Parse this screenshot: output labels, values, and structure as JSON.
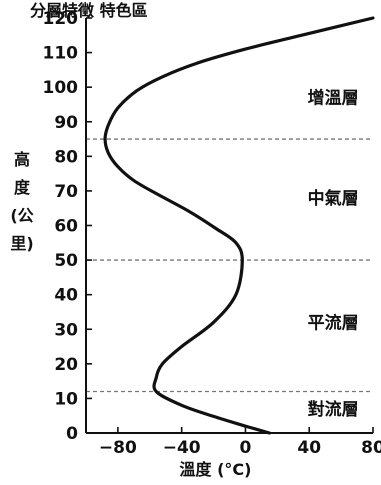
{
  "top_text": "分層特徵   特色區",
  "chart_data": {
    "type": "line",
    "xlabel": "溫度 (°C)",
    "ylabel_chars": [
      "高",
      "度",
      "(公",
      "里)"
    ],
    "xlim": [
      -100,
      80
    ],
    "ylim": [
      0,
      120
    ],
    "x_ticks": [
      -80,
      -40,
      0,
      40,
      80
    ],
    "x_tick_labels": [
      "−80",
      "−40",
      "0",
      "40",
      "80"
    ],
    "y_ticks": [
      0,
      10,
      20,
      30,
      40,
      50,
      60,
      70,
      80,
      90,
      100,
      110,
      120
    ],
    "y_tick_labels": [
      "0",
      "10",
      "20",
      "30",
      "40",
      "50",
      "60",
      "70",
      "80",
      "90",
      "100",
      "110",
      "120"
    ],
    "boundaries": [
      12,
      50,
      85
    ],
    "layers": [
      {
        "name": "增溫層",
        "altitude": 97,
        "temperature": 55
      },
      {
        "name": "中氣層",
        "altitude": 68,
        "temperature": 55
      },
      {
        "name": "平流層",
        "altitude": 32,
        "temperature": 55
      },
      {
        "name": "對流層",
        "altitude": 7,
        "temperature": 55
      }
    ],
    "series": [
      {
        "x": [
          15,
          0,
          -20,
          -40,
          -56,
          -56,
          -52,
          -40,
          -20,
          -6,
          -2,
          -6,
          -18,
          -35,
          -55,
          -70,
          -80,
          -86,
          -88,
          -86,
          -80,
          -68,
          -52,
          -30,
          0,
          35,
          80
        ],
        "y": [
          0,
          2,
          4.8,
          8,
          12,
          16,
          20,
          25,
          32,
          40,
          50,
          55,
          59,
          64,
          69,
          73,
          77,
          81,
          85,
          89,
          94,
          99,
          103,
          107,
          111,
          115,
          120
        ]
      }
    ]
  }
}
